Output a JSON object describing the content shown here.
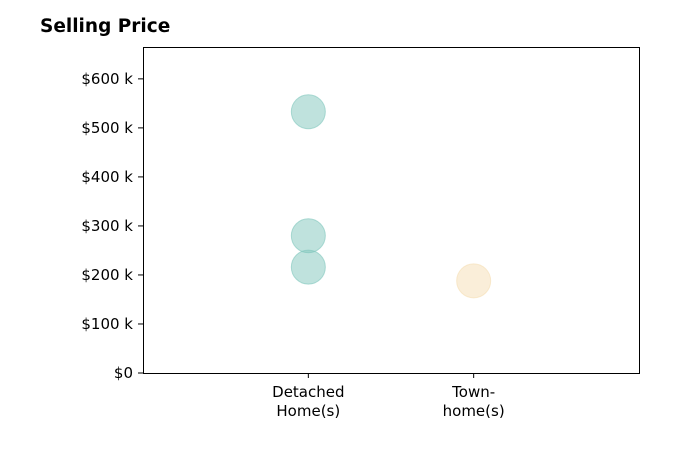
{
  "chart_data": {
    "type": "scatter",
    "title": "Selling Price",
    "xlabel": "",
    "ylabel": "",
    "categories": [
      {
        "lines": [
          "Detached",
          "Home(s)"
        ]
      },
      {
        "lines": [
          "Town-",
          "home(s)"
        ]
      }
    ],
    "x_range": [
      0,
      3
    ],
    "x_positions": [
      1,
      2
    ],
    "ylim": [
      0,
      665000
    ],
    "yticks": [
      {
        "value": 0,
        "label": "$0"
      },
      {
        "value": 100000,
        "label": "$100 k"
      },
      {
        "value": 200000,
        "label": "$200 k"
      },
      {
        "value": 300000,
        "label": "$300 k"
      },
      {
        "value": 400000,
        "label": "$400 k"
      },
      {
        "value": 500000,
        "label": "$500 k"
      },
      {
        "value": 600000,
        "label": "$600 k"
      }
    ],
    "grid": false,
    "points": [
      {
        "category": 0,
        "value": 533000,
        "color": "#7fc6bc"
      },
      {
        "category": 0,
        "value": 280000,
        "color": "#7fc6bc"
      },
      {
        "category": 0,
        "value": 216000,
        "color": "#7fc6bc"
      },
      {
        "category": 1,
        "value": 188000,
        "color": "#f5deb3"
      }
    ]
  }
}
